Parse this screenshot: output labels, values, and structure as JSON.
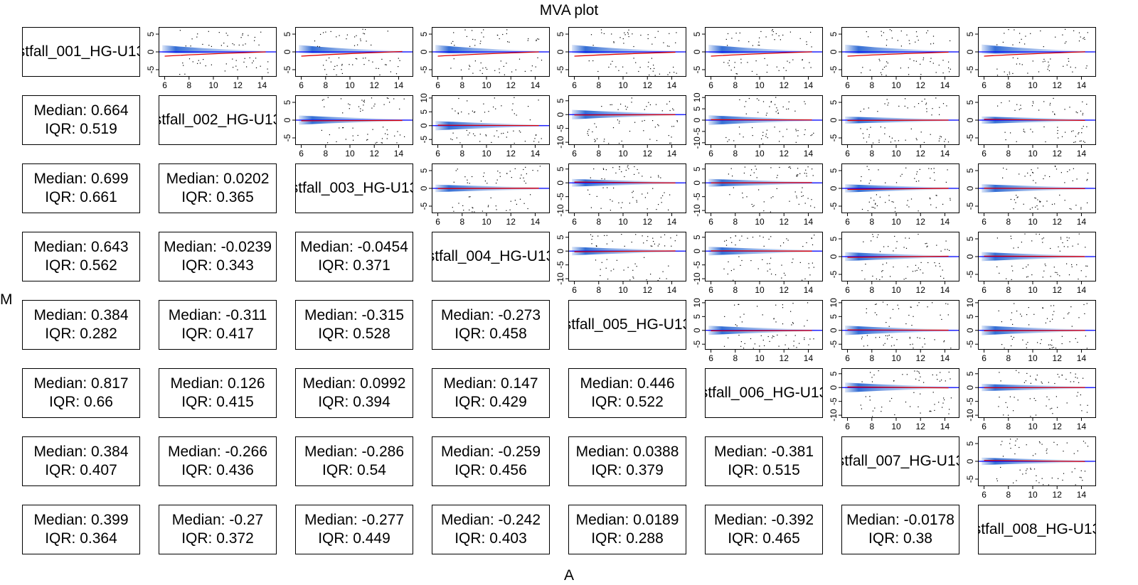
{
  "title": "MVA plot",
  "xlabel": "A",
  "ylabel": "M",
  "samples": [
    "stfall_001_HG-U13",
    "stfall_002_HG-U13",
    "stfall_003_HG-U13",
    "stfall_004_HG-U13",
    "stfall_005_HG-U13",
    "stfall_006_HG-U13",
    "stfall_007_HG-U13",
    "stfall_008_HG-U13"
  ],
  "stat_prefix": {
    "median": "Median: ",
    "iqr": "IQR: "
  },
  "chart_data": {
    "type": "scatter",
    "title": "MVA plot",
    "xlabel": "A",
    "ylabel": "M",
    "layout": "pairwise-matrix-8x8",
    "diagonal": "sample name",
    "lower_triangle": "median and IQR of M",
    "upper_triangle": "MA scatter (smoothed density with loess line in red, M=0 line in blue)",
    "xlim": [
      5.5,
      15.2
    ],
    "x_ticks": [
      6,
      8,
      10,
      12,
      14
    ],
    "colors": {
      "zero_line": "#0000ff",
      "loess": "#dd0000",
      "density": "#1f5fd0",
      "points": "#000000"
    },
    "upper_panels": [
      {
        "row": 1,
        "col": 2,
        "ylim": [
          -7,
          7
        ],
        "y_ticks": [
          -5,
          0,
          5
        ]
      },
      {
        "row": 1,
        "col": 3,
        "ylim": [
          -7,
          7
        ],
        "y_ticks": [
          -5,
          0,
          5
        ]
      },
      {
        "row": 1,
        "col": 4,
        "ylim": [
          -7,
          7
        ],
        "y_ticks": [
          -5,
          0,
          5
        ]
      },
      {
        "row": 1,
        "col": 5,
        "ylim": [
          -7,
          7
        ],
        "y_ticks": [
          -5,
          0,
          5
        ]
      },
      {
        "row": 1,
        "col": 6,
        "ylim": [
          -7,
          7
        ],
        "y_ticks": [
          -5,
          0,
          5
        ]
      },
      {
        "row": 1,
        "col": 7,
        "ylim": [
          -7,
          7
        ],
        "y_ticks": [
          -5,
          0,
          5
        ]
      },
      {
        "row": 1,
        "col": 8,
        "ylim": [
          -7,
          7
        ],
        "y_ticks": [
          -5,
          0,
          5
        ]
      },
      {
        "row": 2,
        "col": 3,
        "ylim": [
          -7,
          7
        ],
        "y_ticks": [
          -5,
          0,
          5
        ]
      },
      {
        "row": 2,
        "col": 4,
        "ylim": [
          -7,
          11
        ],
        "y_ticks": [
          -5,
          0,
          5,
          10
        ]
      },
      {
        "row": 2,
        "col": 5,
        "ylim": [
          -11,
          7
        ],
        "y_ticks": [
          -10,
          -5,
          0,
          5
        ]
      },
      {
        "row": 2,
        "col": 6,
        "ylim": [
          -11,
          11
        ],
        "y_ticks": [
          -10,
          -5,
          0,
          5,
          10
        ]
      },
      {
        "row": 2,
        "col": 7,
        "ylim": [
          -7,
          7
        ],
        "y_ticks": [
          -5,
          0,
          5
        ]
      },
      {
        "row": 2,
        "col": 8,
        "ylim": [
          -7,
          7
        ],
        "y_ticks": [
          -5,
          0,
          5
        ]
      },
      {
        "row": 3,
        "col": 4,
        "ylim": [
          -7,
          7
        ],
        "y_ticks": [
          -5,
          0,
          5
        ]
      },
      {
        "row": 3,
        "col": 5,
        "ylim": [
          -11,
          7
        ],
        "y_ticks": [
          -10,
          -5,
          0,
          5
        ]
      },
      {
        "row": 3,
        "col": 6,
        "ylim": [
          -11,
          7
        ],
        "y_ticks": [
          -10,
          -5,
          0,
          5
        ]
      },
      {
        "row": 3,
        "col": 7,
        "ylim": [
          -7,
          7
        ],
        "y_ticks": [
          -5,
          0,
          5
        ]
      },
      {
        "row": 3,
        "col": 8,
        "ylim": [
          -7,
          7
        ],
        "y_ticks": [
          -5,
          0,
          5
        ]
      },
      {
        "row": 4,
        "col": 5,
        "ylim": [
          -11,
          7
        ],
        "y_ticks": [
          -10,
          -5,
          0,
          5
        ]
      },
      {
        "row": 4,
        "col": 6,
        "ylim": [
          -11,
          7
        ],
        "y_ticks": [
          -10,
          -5,
          0,
          5
        ]
      },
      {
        "row": 4,
        "col": 7,
        "ylim": [
          -7,
          7
        ],
        "y_ticks": [
          -5,
          0,
          5
        ]
      },
      {
        "row": 4,
        "col": 8,
        "ylim": [
          -7,
          7
        ],
        "y_ticks": [
          -5,
          0,
          5
        ]
      },
      {
        "row": 5,
        "col": 6,
        "ylim": [
          -7,
          11
        ],
        "y_ticks": [
          -5,
          0,
          5,
          10
        ]
      },
      {
        "row": 5,
        "col": 7,
        "ylim": [
          -7,
          11
        ],
        "y_ticks": [
          -5,
          0,
          5,
          10
        ]
      },
      {
        "row": 5,
        "col": 8,
        "ylim": [
          -7,
          11
        ],
        "y_ticks": [
          -5,
          0,
          5,
          10
        ]
      },
      {
        "row": 6,
        "col": 7,
        "ylim": [
          -11,
          7
        ],
        "y_ticks": [
          -10,
          -5,
          0,
          5
        ]
      },
      {
        "row": 6,
        "col": 8,
        "ylim": [
          -11,
          7
        ],
        "y_ticks": [
          -10,
          -5,
          0,
          5
        ]
      },
      {
        "row": 7,
        "col": 8,
        "ylim": [
          -7,
          7
        ],
        "y_ticks": [
          -5,
          0,
          5
        ]
      }
    ],
    "lower_panels": [
      {
        "row": 2,
        "col": 1,
        "median": "0.664",
        "iqr": "0.519"
      },
      {
        "row": 3,
        "col": 1,
        "median": "0.699",
        "iqr": "0.661"
      },
      {
        "row": 3,
        "col": 2,
        "median": "0.0202",
        "iqr": "0.365"
      },
      {
        "row": 4,
        "col": 1,
        "median": "0.643",
        "iqr": "0.562"
      },
      {
        "row": 4,
        "col": 2,
        "median": "-0.0239",
        "iqr": "0.343"
      },
      {
        "row": 4,
        "col": 3,
        "median": "-0.0454",
        "iqr": "0.371"
      },
      {
        "row": 5,
        "col": 1,
        "median": "0.384",
        "iqr": "0.282"
      },
      {
        "row": 5,
        "col": 2,
        "median": "-0.311",
        "iqr": "0.417"
      },
      {
        "row": 5,
        "col": 3,
        "median": "-0.315",
        "iqr": "0.528"
      },
      {
        "row": 5,
        "col": 4,
        "median": "-0.273",
        "iqr": "0.458"
      },
      {
        "row": 6,
        "col": 1,
        "median": "0.817",
        "iqr": "0.66"
      },
      {
        "row": 6,
        "col": 2,
        "median": "0.126",
        "iqr": "0.415"
      },
      {
        "row": 6,
        "col": 3,
        "median": "0.0992",
        "iqr": "0.394"
      },
      {
        "row": 6,
        "col": 4,
        "median": "0.147",
        "iqr": "0.429"
      },
      {
        "row": 6,
        "col": 5,
        "median": "0.446",
        "iqr": "0.522"
      },
      {
        "row": 7,
        "col": 1,
        "median": "0.384",
        "iqr": "0.407"
      },
      {
        "row": 7,
        "col": 2,
        "median": "-0.266",
        "iqr": "0.436"
      },
      {
        "row": 7,
        "col": 3,
        "median": "-0.286",
        "iqr": "0.54"
      },
      {
        "row": 7,
        "col": 4,
        "median": "-0.259",
        "iqr": "0.456"
      },
      {
        "row": 7,
        "col": 5,
        "median": "0.0388",
        "iqr": "0.379"
      },
      {
        "row": 7,
        "col": 6,
        "median": "-0.381",
        "iqr": "0.515"
      },
      {
        "row": 8,
        "col": 1,
        "median": "0.399",
        "iqr": "0.364"
      },
      {
        "row": 8,
        "col": 2,
        "median": "-0.27",
        "iqr": "0.372"
      },
      {
        "row": 8,
        "col": 3,
        "median": "-0.277",
        "iqr": "0.449"
      },
      {
        "row": 8,
        "col": 4,
        "median": "-0.242",
        "iqr": "0.403"
      },
      {
        "row": 8,
        "col": 5,
        "median": "0.0189",
        "iqr": "0.288"
      },
      {
        "row": 8,
        "col": 6,
        "median": "-0.392",
        "iqr": "0.465"
      },
      {
        "row": 8,
        "col": 7,
        "median": "-0.0178",
        "iqr": "0.38"
      }
    ]
  }
}
